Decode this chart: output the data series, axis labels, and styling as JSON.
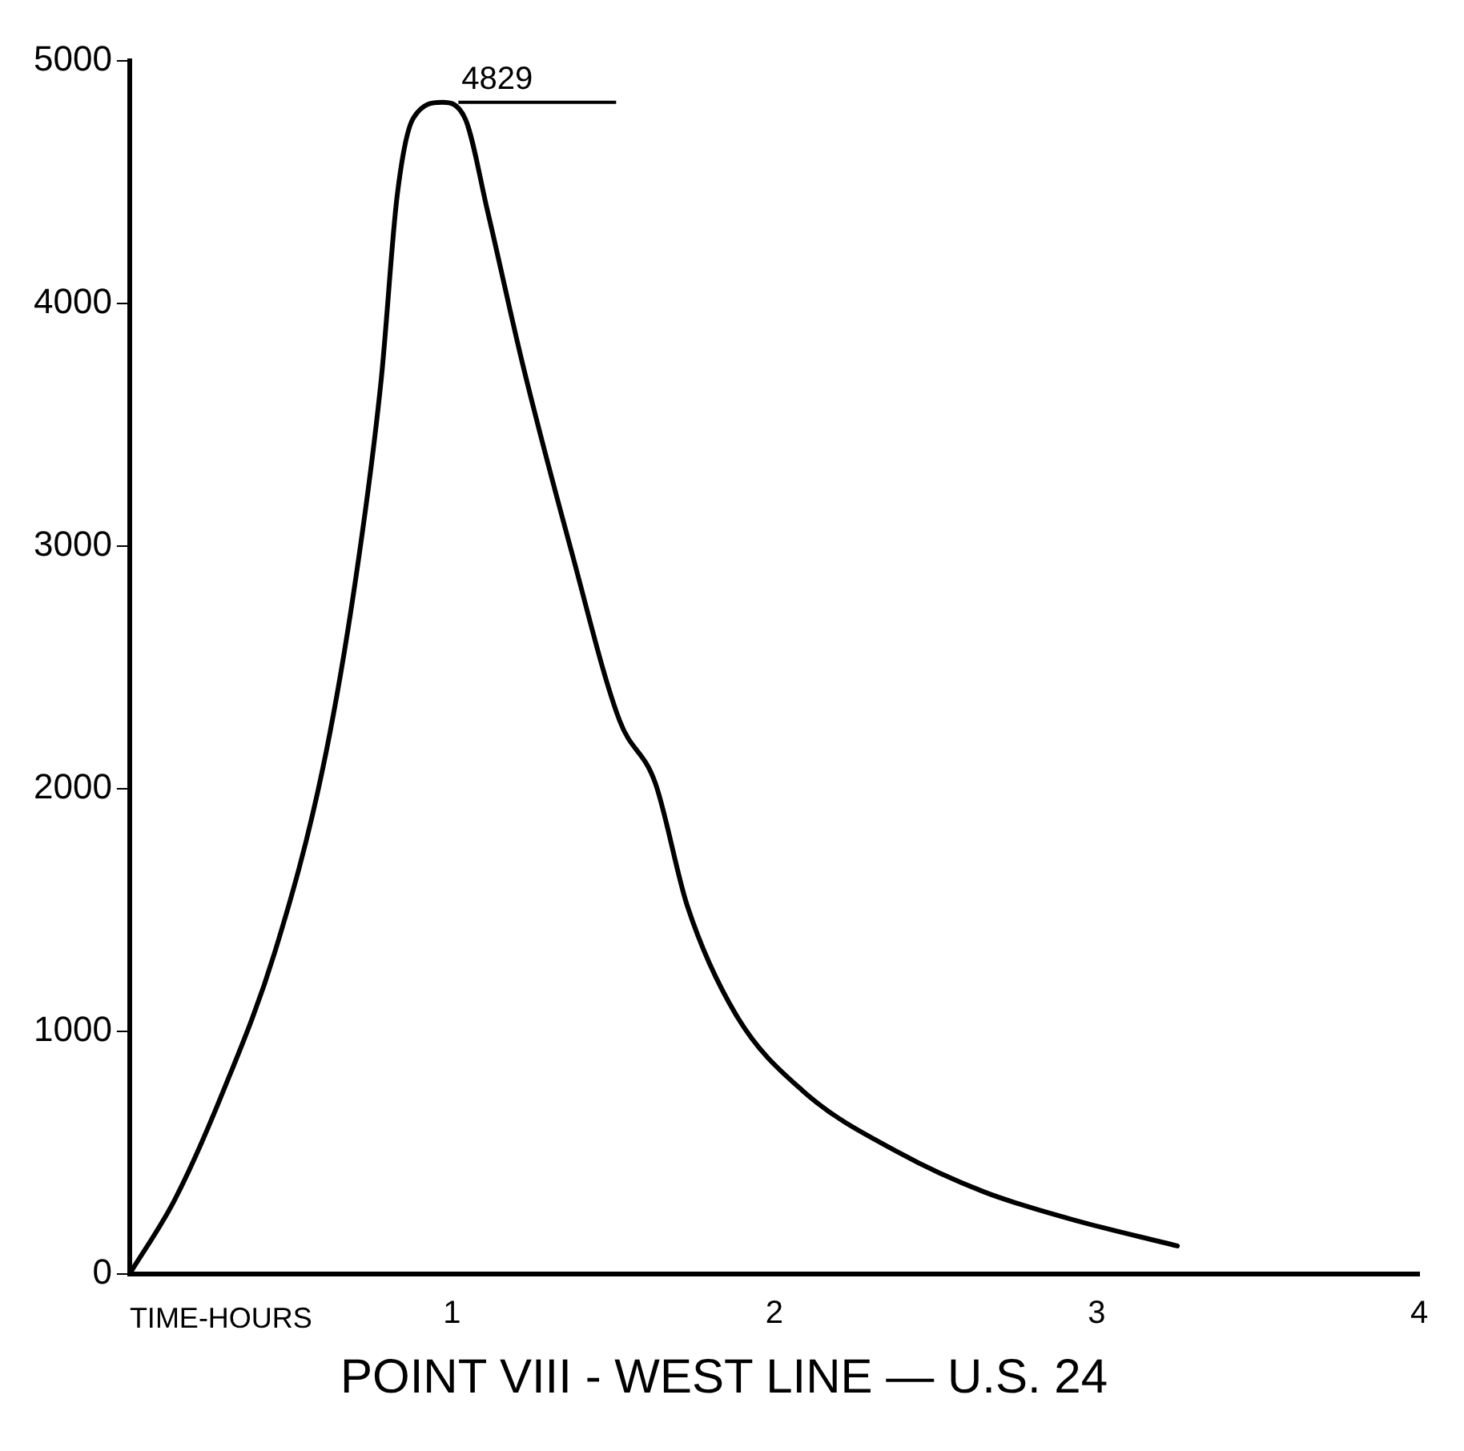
{
  "chart_data": {
    "type": "line",
    "title": "POINT VIII - WEST LINE — U.S. 24",
    "xlabel": "TIME-HOURS",
    "x": [
      0,
      0.14,
      0.29,
      0.45,
      0.6,
      0.7,
      0.78,
      0.83,
      0.88,
      0.97,
      1.04,
      1.11,
      1.22,
      1.37,
      1.52,
      1.63,
      1.73,
      1.88,
      2.09,
      2.39,
      2.65,
      2.91,
      3.25
    ],
    "series": [
      {
        "color": "#000000",
        "values": [
          0,
          306,
          752,
          1325,
          2089,
          2854,
          3682,
          4446,
          4764,
          4829,
          4764,
          4382,
          3745,
          2981,
          2280,
          2025,
          1516,
          1070,
          752,
          497,
          338,
          229,
          115
        ]
      }
    ],
    "xlim": [
      0,
      4
    ],
    "xticks": [
      {
        "value": 0,
        "label": null
      },
      1,
      2,
      3,
      4
    ],
    "ylim": [
      0,
      5000
    ],
    "yticks": [
      0,
      1000,
      2000,
      3000,
      4000,
      5000
    ],
    "annotations": [
      {
        "text": "4829",
        "x": 0.97,
        "y": 4829
      }
    ],
    "grid": false,
    "legend": false,
    "marker": "none",
    "line_style": "solid"
  }
}
